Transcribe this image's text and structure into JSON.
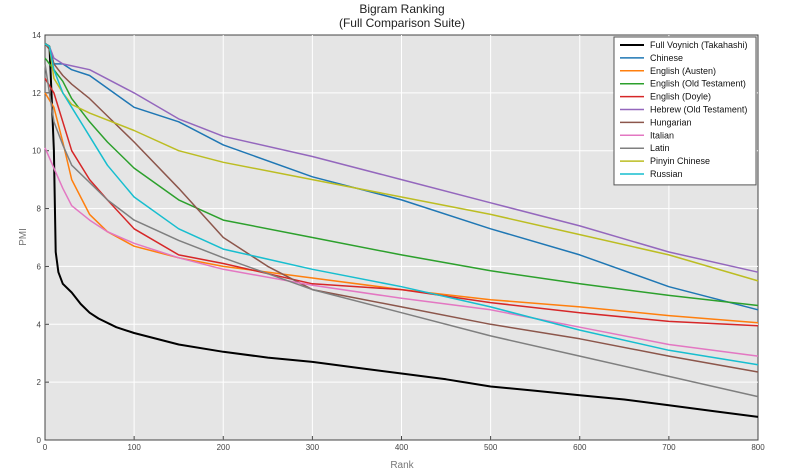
{
  "chart_data": {
    "type": "line",
    "title": "Bigram Ranking",
    "subtitle": "(Full Comparison Suite)",
    "xlabel": "Rank",
    "ylabel": "PMI",
    "xlim": [
      0,
      800
    ],
    "ylim": [
      0,
      14
    ],
    "xticks": [
      0,
      100,
      200,
      300,
      400,
      500,
      600,
      700,
      800
    ],
    "yticks": [
      0,
      2,
      4,
      6,
      8,
      10,
      12,
      14
    ],
    "grid": true,
    "legend_position": "top-right",
    "series": [
      {
        "name": "Full Voynich (Takahashi)",
        "color": "#000000",
        "points": [
          [
            0,
            13.7
          ],
          [
            5,
            13.6
          ],
          [
            8,
            11.5
          ],
          [
            10,
            10.0
          ],
          [
            12,
            6.5
          ],
          [
            15,
            5.8
          ],
          [
            20,
            5.4
          ],
          [
            30,
            5.1
          ],
          [
            40,
            4.7
          ],
          [
            50,
            4.4
          ],
          [
            60,
            4.2
          ],
          [
            80,
            3.9
          ],
          [
            100,
            3.7
          ],
          [
            150,
            3.3
          ],
          [
            200,
            3.05
          ],
          [
            250,
            2.85
          ],
          [
            300,
            2.7
          ],
          [
            350,
            2.5
          ],
          [
            400,
            2.3
          ],
          [
            450,
            2.1
          ],
          [
            500,
            1.85
          ],
          [
            550,
            1.7
          ],
          [
            600,
            1.55
          ],
          [
            650,
            1.4
          ],
          [
            700,
            1.2
          ],
          [
            750,
            1.0
          ],
          [
            800,
            0.8
          ]
        ]
      },
      {
        "name": "Chinese",
        "color": "#1f77b4",
        "points": [
          [
            0,
            13.7
          ],
          [
            5,
            13.6
          ],
          [
            10,
            13.0
          ],
          [
            20,
            13.0
          ],
          [
            30,
            12.8
          ],
          [
            50,
            12.6
          ],
          [
            100,
            11.5
          ],
          [
            150,
            11.0
          ],
          [
            200,
            10.2
          ],
          [
            300,
            9.1
          ],
          [
            400,
            8.3
          ],
          [
            500,
            7.3
          ],
          [
            600,
            6.4
          ],
          [
            700,
            5.3
          ],
          [
            800,
            4.5
          ]
        ]
      },
      {
        "name": "English (Austen)",
        "color": "#ff7f0e",
        "points": [
          [
            0,
            12.0
          ],
          [
            10,
            11.5
          ],
          [
            20,
            10.3
          ],
          [
            30,
            9.0
          ],
          [
            50,
            7.8
          ],
          [
            70,
            7.2
          ],
          [
            100,
            6.7
          ],
          [
            150,
            6.3
          ],
          [
            200,
            6.0
          ],
          [
            300,
            5.6
          ],
          [
            400,
            5.2
          ],
          [
            500,
            4.85
          ],
          [
            600,
            4.6
          ],
          [
            700,
            4.3
          ],
          [
            800,
            4.05
          ]
        ]
      },
      {
        "name": "English (Old Testament)",
        "color": "#2ca02c",
        "points": [
          [
            0,
            13.2
          ],
          [
            10,
            12.8
          ],
          [
            20,
            12.4
          ],
          [
            30,
            11.8
          ],
          [
            50,
            11.0
          ],
          [
            70,
            10.3
          ],
          [
            100,
            9.4
          ],
          [
            150,
            8.3
          ],
          [
            200,
            7.6
          ],
          [
            300,
            7.0
          ],
          [
            400,
            6.4
          ],
          [
            500,
            5.85
          ],
          [
            600,
            5.4
          ],
          [
            700,
            5.0
          ],
          [
            800,
            4.65
          ]
        ]
      },
      {
        "name": "English (Doyle)",
        "color": "#d62728",
        "points": [
          [
            0,
            12.5
          ],
          [
            10,
            12.0
          ],
          [
            20,
            11.0
          ],
          [
            30,
            10.0
          ],
          [
            50,
            9.0
          ],
          [
            70,
            8.3
          ],
          [
            100,
            7.3
          ],
          [
            150,
            6.4
          ],
          [
            200,
            6.1
          ],
          [
            300,
            5.4
          ],
          [
            400,
            5.2
          ],
          [
            500,
            4.75
          ],
          [
            600,
            4.4
          ],
          [
            700,
            4.1
          ],
          [
            800,
            3.95
          ]
        ]
      },
      {
        "name": "Hebrew (Old Testament)",
        "color": "#9467bd",
        "points": [
          [
            0,
            13.7
          ],
          [
            5,
            13.6
          ],
          [
            10,
            13.2
          ],
          [
            20,
            13.0
          ],
          [
            50,
            12.8
          ],
          [
            100,
            12.0
          ],
          [
            150,
            11.1
          ],
          [
            200,
            10.5
          ],
          [
            300,
            9.8
          ],
          [
            400,
            9.0
          ],
          [
            500,
            8.2
          ],
          [
            600,
            7.4
          ],
          [
            700,
            6.5
          ],
          [
            800,
            5.8
          ]
        ]
      },
      {
        "name": "Hungarian",
        "color": "#8c564b",
        "points": [
          [
            0,
            13.7
          ],
          [
            5,
            13.5
          ],
          [
            10,
            13.0
          ],
          [
            20,
            12.6
          ],
          [
            30,
            12.3
          ],
          [
            50,
            11.8
          ],
          [
            70,
            11.2
          ],
          [
            100,
            10.3
          ],
          [
            150,
            8.7
          ],
          [
            200,
            7.0
          ],
          [
            250,
            6.0
          ],
          [
            300,
            5.2
          ],
          [
            400,
            4.6
          ],
          [
            500,
            4.0
          ],
          [
            600,
            3.5
          ],
          [
            700,
            2.9
          ],
          [
            800,
            2.35
          ]
        ]
      },
      {
        "name": "Italian",
        "color": "#e377c2",
        "points": [
          [
            0,
            10.1
          ],
          [
            10,
            9.4
          ],
          [
            20,
            8.7
          ],
          [
            30,
            8.1
          ],
          [
            50,
            7.6
          ],
          [
            70,
            7.2
          ],
          [
            100,
            6.8
          ],
          [
            150,
            6.3
          ],
          [
            200,
            5.9
          ],
          [
            300,
            5.35
          ],
          [
            400,
            4.9
          ],
          [
            500,
            4.5
          ],
          [
            600,
            3.9
          ],
          [
            700,
            3.3
          ],
          [
            800,
            2.9
          ]
        ]
      },
      {
        "name": "Latin",
        "color": "#7f7f7f",
        "points": [
          [
            0,
            13.0
          ],
          [
            10,
            11.0
          ],
          [
            20,
            10.2
          ],
          [
            30,
            9.5
          ],
          [
            50,
            8.9
          ],
          [
            70,
            8.3
          ],
          [
            100,
            7.6
          ],
          [
            150,
            6.9
          ],
          [
            200,
            6.3
          ],
          [
            300,
            5.2
          ],
          [
            400,
            4.4
          ],
          [
            500,
            3.6
          ],
          [
            600,
            2.9
          ],
          [
            700,
            2.2
          ],
          [
            800,
            1.5
          ]
        ]
      },
      {
        "name": "Pinyin Chinese",
        "color": "#bcbd22",
        "points": [
          [
            0,
            13.7
          ],
          [
            5,
            13.6
          ],
          [
            10,
            12.5
          ],
          [
            20,
            12.0
          ],
          [
            30,
            11.6
          ],
          [
            50,
            11.3
          ],
          [
            100,
            10.7
          ],
          [
            150,
            10.0
          ],
          [
            200,
            9.6
          ],
          [
            300,
            9.0
          ],
          [
            400,
            8.4
          ],
          [
            500,
            7.8
          ],
          [
            600,
            7.1
          ],
          [
            700,
            6.4
          ],
          [
            800,
            5.5
          ]
        ]
      },
      {
        "name": "Russian",
        "color": "#17becf",
        "points": [
          [
            0,
            13.7
          ],
          [
            5,
            13.6
          ],
          [
            10,
            12.8
          ],
          [
            20,
            12.0
          ],
          [
            30,
            11.5
          ],
          [
            50,
            10.5
          ],
          [
            70,
            9.5
          ],
          [
            100,
            8.4
          ],
          [
            150,
            7.3
          ],
          [
            200,
            6.6
          ],
          [
            300,
            5.9
          ],
          [
            400,
            5.3
          ],
          [
            500,
            4.6
          ],
          [
            600,
            3.8
          ],
          [
            700,
            3.1
          ],
          [
            800,
            2.6
          ]
        ]
      }
    ]
  }
}
